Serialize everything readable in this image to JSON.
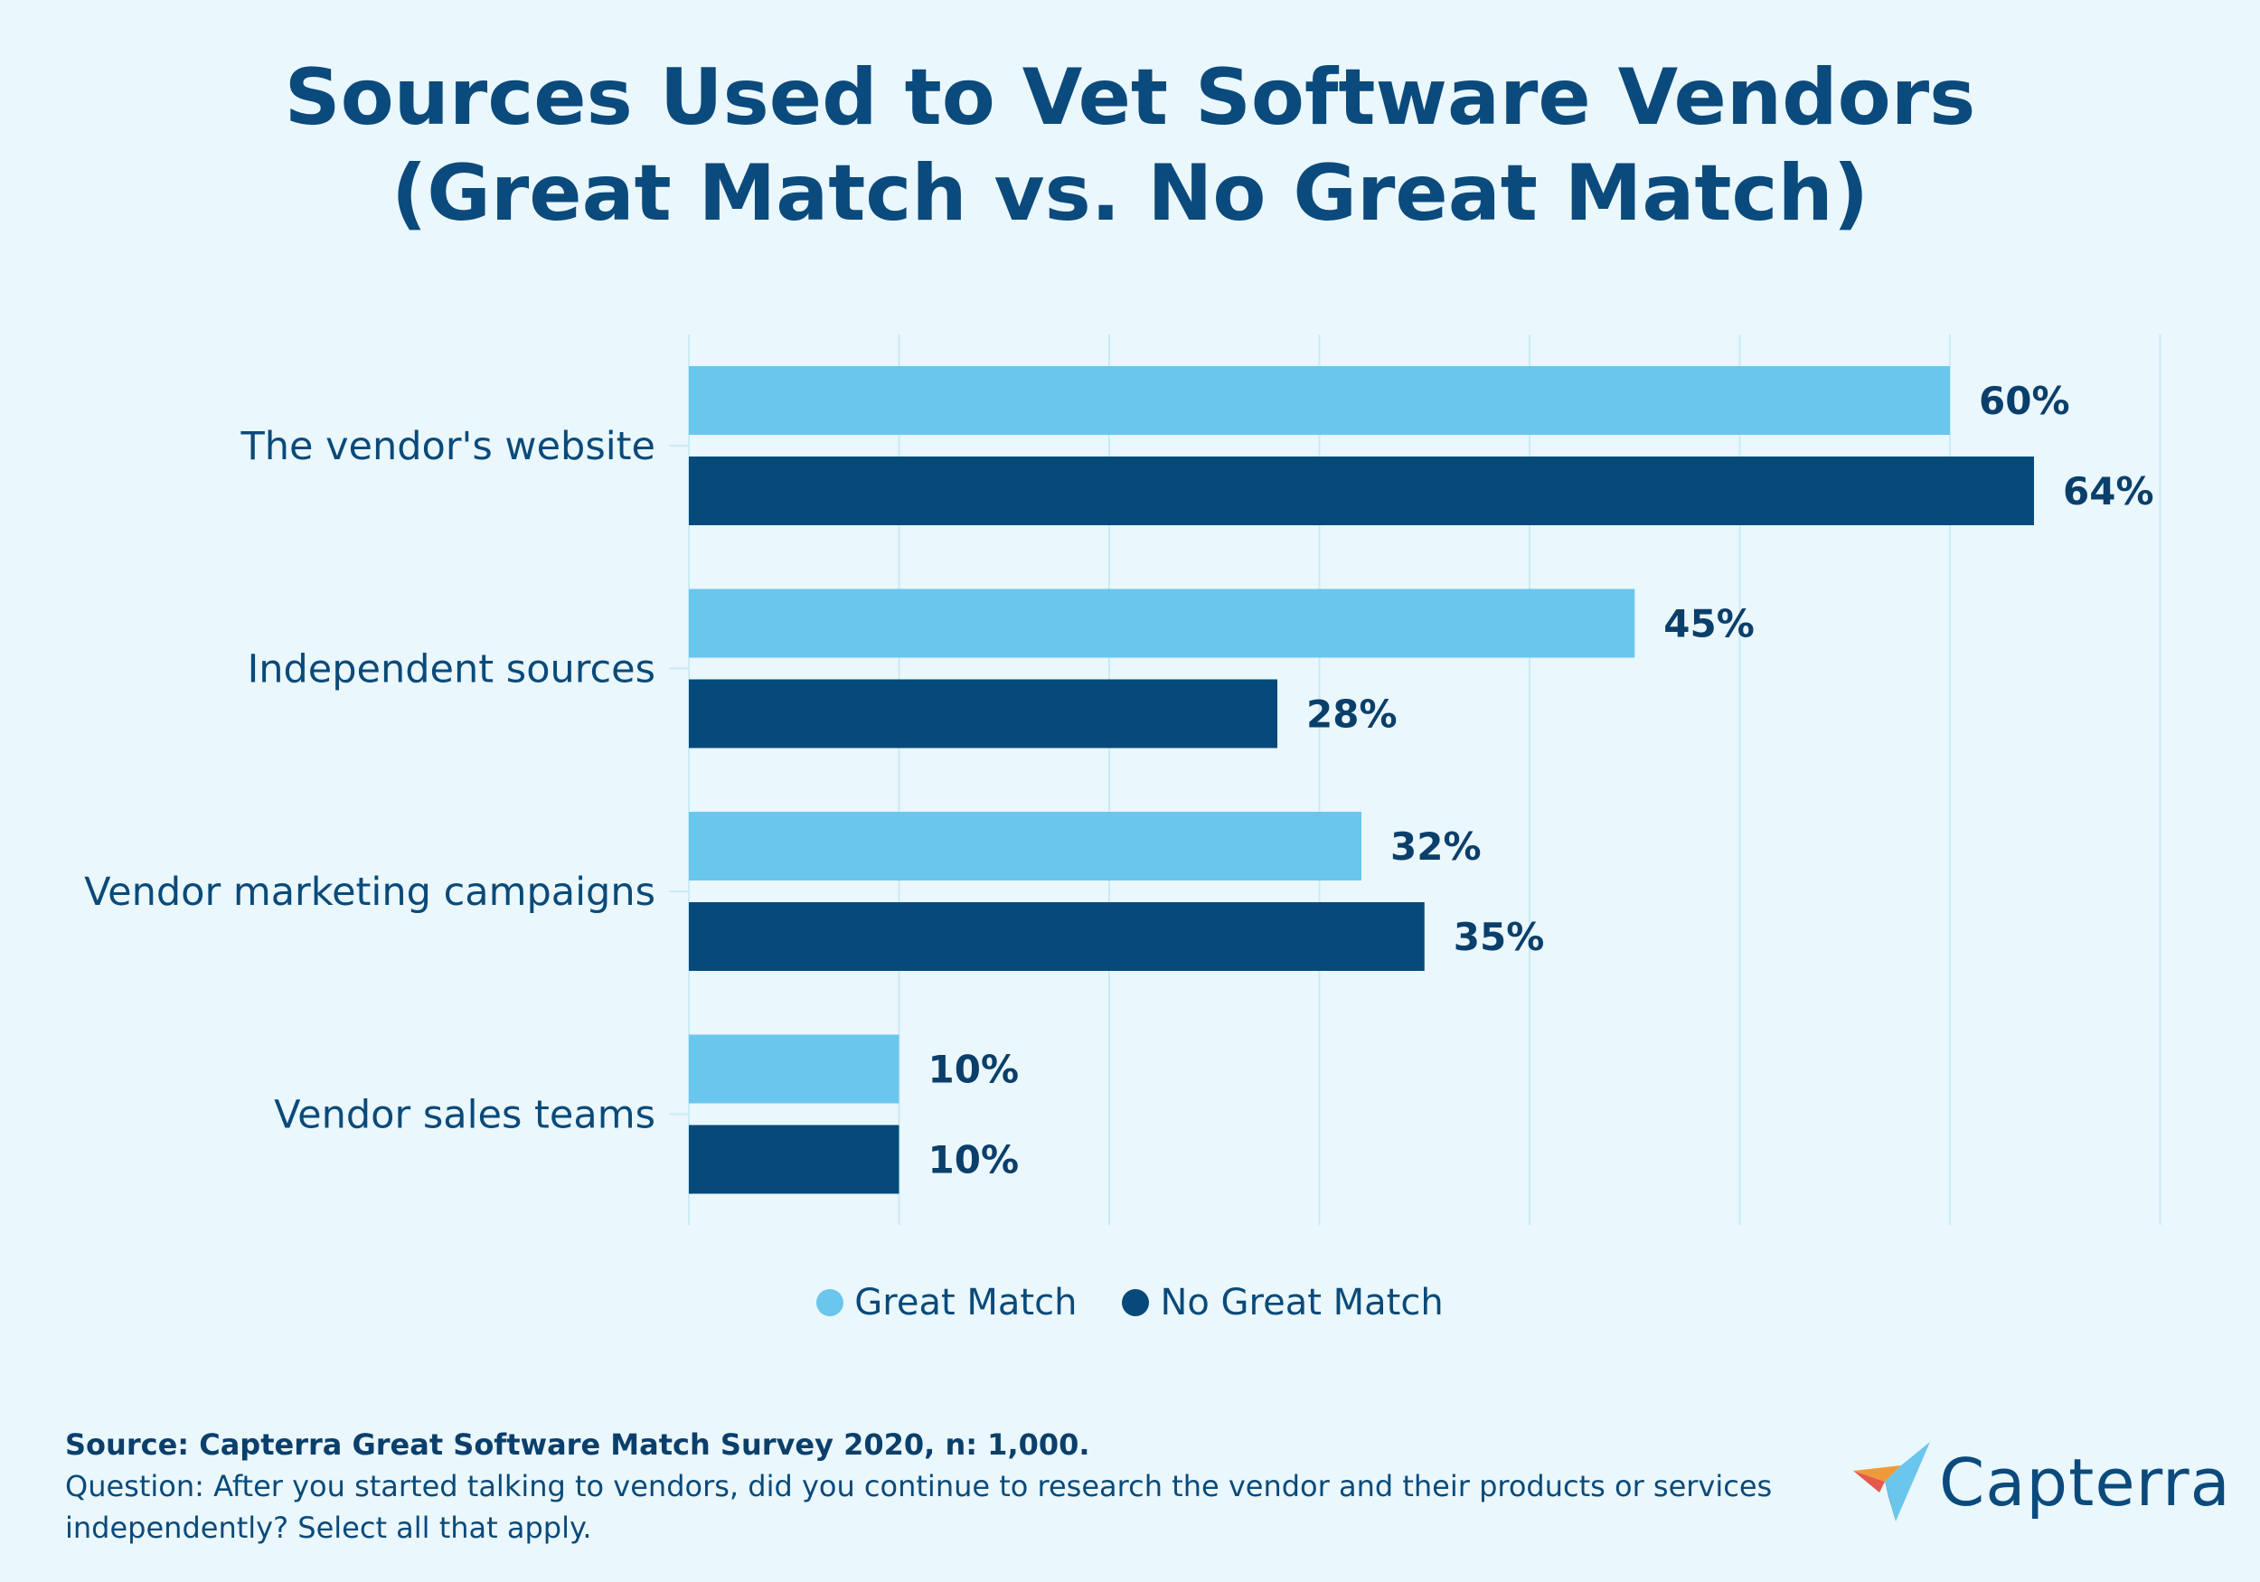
{
  "title_line1": "Sources Used to Vet Software Vendors",
  "title_line2": "(Great Match vs. No Great Match)",
  "chart_data": {
    "type": "bar",
    "orientation": "horizontal",
    "title": "Sources Used to Vet Software Vendors (Great Match vs. No Great Match)",
    "categories": [
      "The vendor's website",
      "Independent sources",
      "Vendor marketing campaigns",
      "Vendor sales teams"
    ],
    "series": [
      {
        "name": "Great Match",
        "values": [
          60,
          45,
          32,
          10
        ],
        "color": "#6ac6ed"
      },
      {
        "name": "No Great Match",
        "values": [
          64,
          28,
          35,
          10
        ],
        "color": "#064a7c"
      }
    ],
    "value_suffix": "%",
    "xlim": [
      0,
      70
    ],
    "gridlines_every": 10,
    "legend": "bottom-center"
  },
  "legend": {
    "great_match": "Great Match",
    "no_great_match": "No Great Match",
    "great_match_color": "#6ac6ed",
    "no_great_match_color": "#064a7c"
  },
  "footer": {
    "source": "Source: Capterra Great Software Match Survey 2020, n: 1,000.",
    "question": "Question: After you started talking to vendors, did you continue to research the vendor and their products or services independently? Select all that apply."
  },
  "logo": {
    "text": "Capterra",
    "icon": "capterra-logo-icon"
  }
}
